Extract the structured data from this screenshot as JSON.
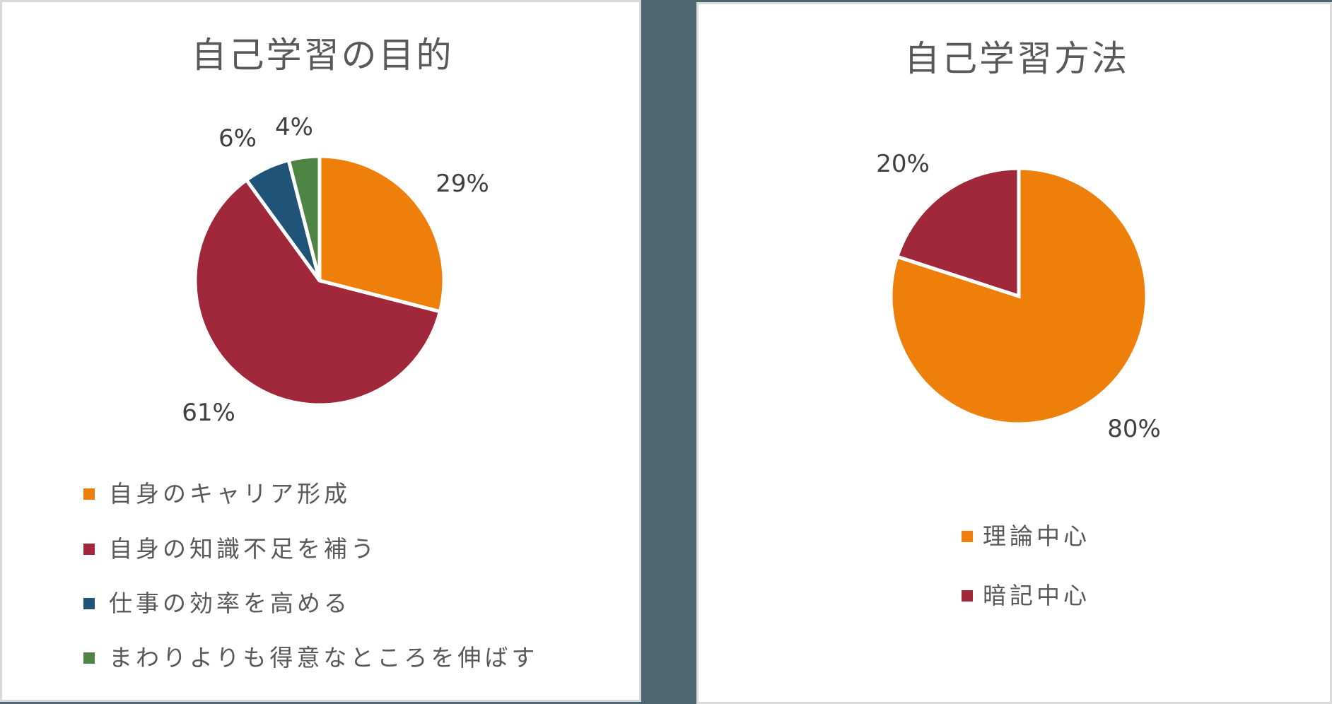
{
  "colors": {
    "background": "#4C6770",
    "panel_border": "#D9D9D9",
    "title_text": "#595959",
    "label_text": "#404040",
    "orange": "#EE7F0B",
    "red": "#A1273A",
    "blue": "#1F5377",
    "green": "#4F8544"
  },
  "charts": {
    "left": {
      "title": "自己学習の目的",
      "legend": [
        {
          "label": "自身のキャリア形成",
          "color": "#EE7F0B"
        },
        {
          "label": "自身の知識不足を補う",
          "color": "#A1273A"
        },
        {
          "label": "仕事の効率を高める",
          "color": "#1F5377"
        },
        {
          "label": "まわりよりも得意なところを伸ばす",
          "color": "#4F8544"
        }
      ],
      "data_labels": [
        "29%",
        "61%",
        "6%",
        "4%"
      ]
    },
    "right": {
      "title": "自己学習方法",
      "legend": [
        {
          "label": "理論中心",
          "color": "#EE7F0B"
        },
        {
          "label": "暗記中心",
          "color": "#A1273A"
        }
      ],
      "data_labels": [
        "80%",
        "20%"
      ]
    }
  },
  "chart_data": [
    {
      "type": "pie",
      "title": "自己学習の目的",
      "categories": [
        "自身のキャリア形成",
        "自身の知識不足を補う",
        "仕事の効率を高める",
        "まわりよりも得意なところを伸ばす"
      ],
      "values": [
        29,
        61,
        6,
        4
      ],
      "unit": "%",
      "colors": [
        "#EE7F0B",
        "#A1273A",
        "#1F5377",
        "#4F8544"
      ],
      "start_angle": "12 o'clock, clockwise",
      "legend_position": "bottom"
    },
    {
      "type": "pie",
      "title": "自己学習方法",
      "categories": [
        "理論中心",
        "暗記中心"
      ],
      "values": [
        80,
        20
      ],
      "unit": "%",
      "colors": [
        "#EE7F0B",
        "#A1273A"
      ],
      "start_angle": "12 o'clock, clockwise",
      "legend_position": "bottom"
    }
  ]
}
